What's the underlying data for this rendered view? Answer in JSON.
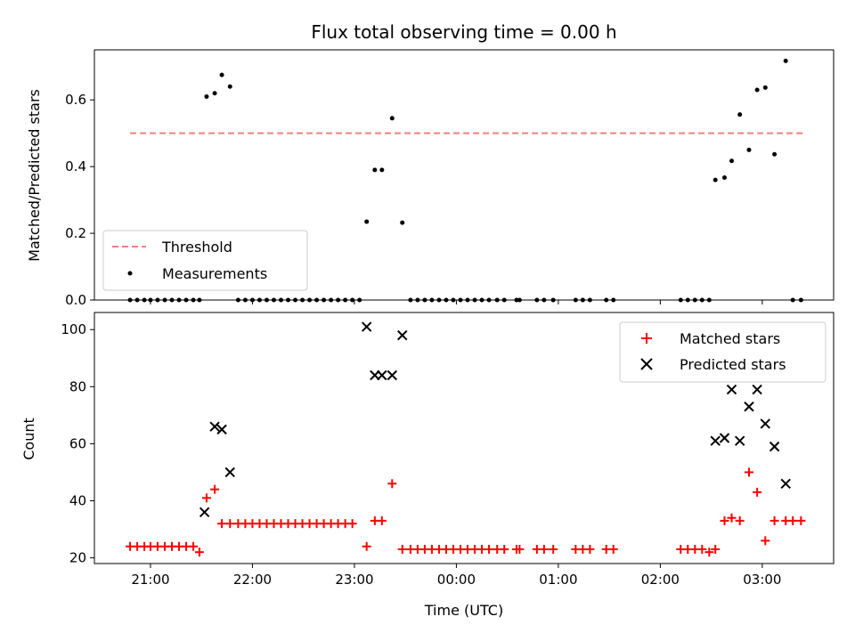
{
  "chart_data": {
    "title": "Flux total observing time = 0.00 h",
    "xlabel": "Time (UTC)",
    "x_ticks": [
      "21:00",
      "22:00",
      "23:00",
      "00:00",
      "01:00",
      "02:00",
      "03:00"
    ],
    "x_tick_hours": [
      21,
      22,
      23,
      24,
      25,
      26,
      27
    ],
    "x_range_hours": [
      20.45,
      27.7
    ],
    "panels": [
      {
        "type": "scatter",
        "ylabel": "Matched/Predicted stars",
        "ylim": [
          0,
          0.75
        ],
        "y_ticks": [
          0.0,
          0.2,
          0.4,
          0.6
        ],
        "y_tick_labels": [
          "0.0",
          "0.2",
          "0.4",
          "0.6"
        ],
        "legend_position": "lower-left",
        "series": [
          {
            "name": "Threshold",
            "kind": "dashed-line",
            "color": "#f08080",
            "x": [
              20.8,
              27.4
            ],
            "y": [
              0.5,
              0.5
            ]
          },
          {
            "name": "Measurements",
            "kind": "dot",
            "color": "#000000",
            "x": [
              20.8,
              20.87,
              20.94,
              21.0,
              21.07,
              21.14,
              21.21,
              21.28,
              21.35,
              21.42,
              21.48,
              21.55,
              21.63,
              21.7,
              21.78,
              21.86,
              21.93,
              22.0,
              22.07,
              22.14,
              22.21,
              22.28,
              22.35,
              22.42,
              22.49,
              22.56,
              22.63,
              22.7,
              22.77,
              22.84,
              22.91,
              22.98,
              23.05,
              23.12,
              23.2,
              23.27,
              23.37,
              23.47,
              23.55,
              23.62,
              23.69,
              23.76,
              23.83,
              23.9,
              23.97,
              24.04,
              24.11,
              24.18,
              24.25,
              24.32,
              24.4,
              24.47,
              24.59,
              24.62,
              24.79,
              24.86,
              24.95,
              25.17,
              25.24,
              25.31,
              25.47,
              25.54,
              26.2,
              26.27,
              26.34,
              26.41,
              26.48,
              26.54,
              26.63,
              26.7,
              26.78,
              26.87,
              26.95,
              27.03,
              27.12,
              27.23,
              27.3,
              27.38
            ],
            "y": [
              0,
              0,
              0,
              0,
              0,
              0,
              0,
              0,
              0,
              0,
              0,
              0.61,
              0.62,
              0.675,
              0.64,
              0,
              0,
              0,
              0,
              0,
              0,
              0,
              0,
              0,
              0,
              0,
              0,
              0,
              0,
              0,
              0,
              0,
              0,
              0.235,
              0.39,
              0.39,
              0.545,
              0.232,
              0,
              0,
              0,
              0,
              0,
              0,
              0,
              0,
              0,
              0,
              0,
              0,
              0,
              0,
              0,
              0,
              0,
              0,
              0,
              0,
              0,
              0,
              0,
              0,
              0,
              0,
              0,
              0,
              0,
              0.36,
              0.367,
              0.417,
              0.556,
              0.45,
              0.63,
              0.637,
              0.437,
              0.717,
              0,
              0
            ]
          }
        ]
      },
      {
        "type": "scatter",
        "ylabel": "Count",
        "ylim": [
          18,
          106
        ],
        "y_ticks": [
          20,
          40,
          60,
          80,
          100
        ],
        "y_tick_labels": [
          "20",
          "40",
          "60",
          "80",
          "100"
        ],
        "legend_position": "upper-right",
        "series": [
          {
            "name": "Matched stars",
            "kind": "plus",
            "color": "#ff0000",
            "x": [
              20.8,
              20.87,
              20.94,
              21.0,
              21.07,
              21.14,
              21.21,
              21.28,
              21.35,
              21.42,
              21.48,
              21.55,
              21.63,
              21.7,
              21.78,
              21.86,
              21.93,
              22.0,
              22.07,
              22.14,
              22.21,
              22.28,
              22.35,
              22.42,
              22.49,
              22.56,
              22.63,
              22.7,
              22.77,
              22.84,
              22.91,
              22.98,
              23.12,
              23.2,
              23.27,
              23.37,
              23.47,
              23.55,
              23.62,
              23.69,
              23.76,
              23.83,
              23.9,
              23.97,
              24.04,
              24.11,
              24.18,
              24.25,
              24.32,
              24.4,
              24.47,
              24.59,
              24.62,
              24.79,
              24.86,
              24.95,
              25.17,
              25.24,
              25.31,
              25.47,
              25.54,
              26.2,
              26.27,
              26.34,
              26.41,
              26.48,
              26.54,
              26.63,
              26.7,
              26.78,
              26.87,
              26.95,
              27.03,
              27.12,
              27.23,
              27.3,
              27.38
            ],
            "y": [
              24,
              24,
              24,
              24,
              24,
              24,
              24,
              24,
              24,
              24,
              22,
              41,
              44,
              32,
              32,
              32,
              32,
              32,
              32,
              32,
              32,
              32,
              32,
              32,
              32,
              32,
              32,
              32,
              32,
              32,
              32,
              32,
              24,
              33,
              33,
              46,
              23,
              23,
              23,
              23,
              23,
              23,
              23,
              23,
              23,
              23,
              23,
              23,
              23,
              23,
              23,
              23,
              23,
              23,
              23,
              23,
              23,
              23,
              23,
              23,
              23,
              23,
              23,
              23,
              23,
              22,
              23,
              33,
              34,
              33,
              50,
              43,
              26,
              33,
              33,
              33,
              33
            ]
          },
          {
            "name": "Predicted stars",
            "kind": "cross",
            "color": "#000000",
            "x": [
              21.53,
              21.63,
              21.7,
              21.78,
              23.12,
              23.2,
              23.27,
              23.37,
              23.47,
              26.54,
              26.63,
              26.7,
              26.78,
              26.87,
              26.95,
              27.03,
              27.12,
              27.23
            ],
            "y": [
              36,
              66,
              65,
              50,
              101,
              84,
              84,
              84,
              98,
              61,
              62,
              79,
              61,
              73,
              79,
              67,
              59,
              46
            ]
          }
        ]
      }
    ]
  }
}
